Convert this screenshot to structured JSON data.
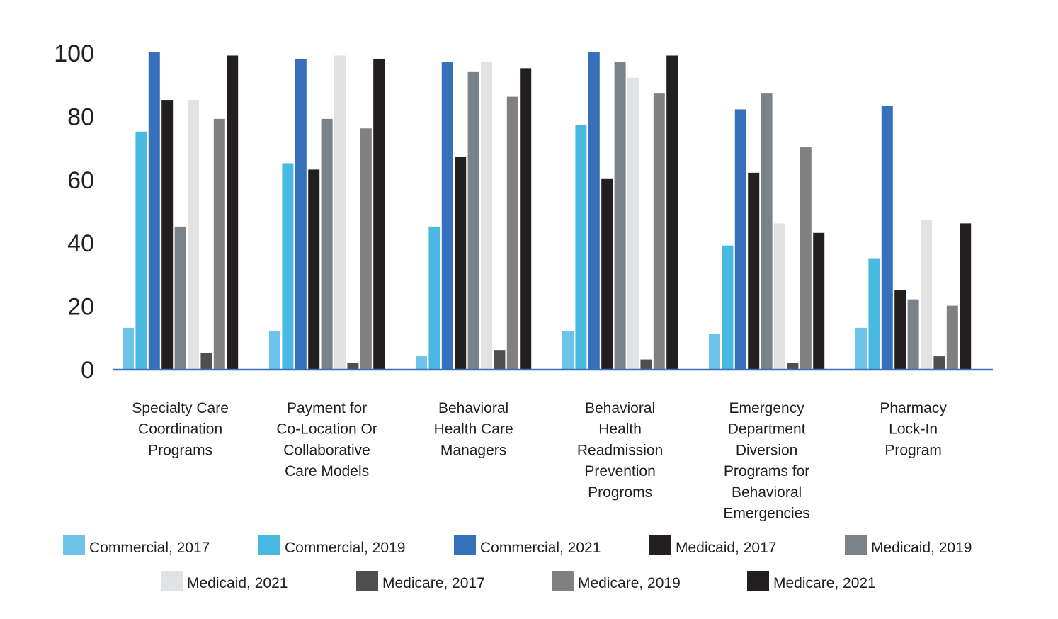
{
  "chart_data": {
    "type": "bar",
    "title": "",
    "xlabel": "",
    "ylabel": "",
    "ylim": [
      0,
      100
    ],
    "yticks": [
      0,
      20,
      40,
      60,
      80,
      100
    ],
    "grid": false,
    "legend_position": "bottom",
    "categories": [
      [
        "Specialty Care",
        "Coordination",
        "Programs"
      ],
      [
        "Payment for",
        "Co-Location Or",
        "Collaborative",
        "Care Models"
      ],
      [
        "Behavioral",
        "Health Care",
        "Managers"
      ],
      [
        "Behavioral",
        "Health",
        "Readmission",
        "Prevention",
        "Progroms"
      ],
      [
        "Emergency",
        "Department",
        "Diversion",
        "Programs for",
        "Behavioral",
        "Emergencies"
      ],
      [
        "Pharmacy",
        "Lock-In",
        "Program"
      ]
    ],
    "series": [
      {
        "name": "Commercial, 2017",
        "color": "#6ec3ea",
        "values": [
          13,
          12,
          4,
          12,
          11,
          13
        ]
      },
      {
        "name": "Commercial, 2019",
        "color": "#4ab9e2",
        "values": [
          75,
          65,
          45,
          77,
          39,
          35
        ]
      },
      {
        "name": "Commercial, 2021",
        "color": "#3670bb",
        "values": [
          100,
          98,
          97,
          100,
          82,
          83
        ]
      },
      {
        "name": "Medicaid, 2017",
        "color": "#231f20",
        "values": [
          85,
          63,
          67,
          60,
          62,
          25
        ]
      },
      {
        "name": "Medicaid, 2019",
        "color": "#7a828a",
        "values": [
          45,
          79,
          94,
          97,
          87,
          22
        ]
      },
      {
        "name": "Medicaid, 2021",
        "color": "#e1e2e3",
        "values": [
          85,
          99,
          97,
          92,
          46,
          47
        ]
      },
      {
        "name": "Medicare, 2017",
        "color": "#4f4f4f",
        "values": [
          5,
          2,
          6,
          3,
          2,
          4
        ]
      },
      {
        "name": "Medicare, 2019",
        "color": "#808080",
        "values": [
          79,
          76,
          86,
          87,
          70,
          20
        ]
      },
      {
        "name": "Medicare, 2021",
        "color": "#231f20",
        "values": [
          99,
          98,
          95,
          99,
          43,
          46
        ]
      }
    ]
  }
}
